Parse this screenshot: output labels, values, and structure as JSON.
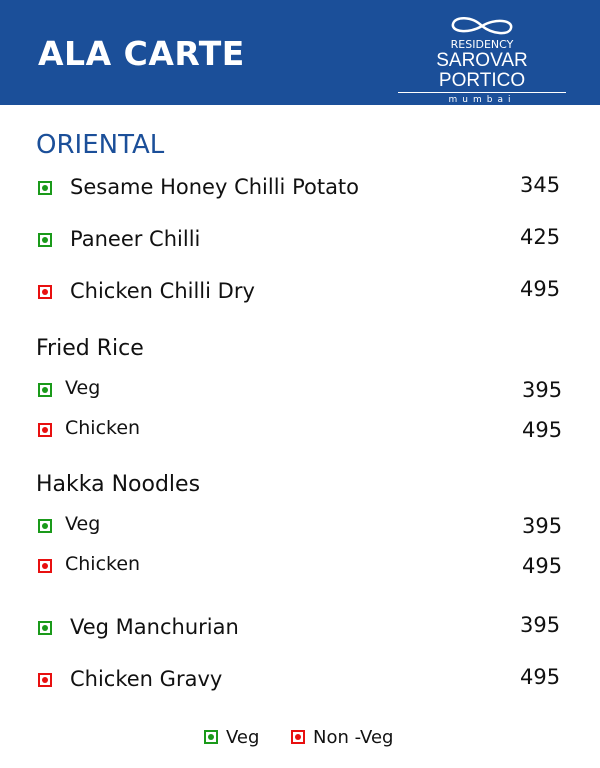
{
  "header": {
    "title": "ALA CARTE",
    "logo": {
      "line1": "RESIDENCY",
      "line2": "SAROVAR PORTICO",
      "line3": "mumbai"
    }
  },
  "colors": {
    "brand": "#1b4f99",
    "veg": "#1a9a1a",
    "non_veg": "#e81010"
  },
  "section": "ORIENTAL",
  "items_top": [
    {
      "type": "veg",
      "name": "Sesame Honey Chilli Potato",
      "price": "345"
    },
    {
      "type": "non-veg",
      "name": "Paneer Chilli",
      "price": "425"
    },
    {
      "type": "non-veg",
      "name": "Chicken Chilli Dry",
      "price": "495"
    }
  ],
  "fried_rice": {
    "title": "Fried Rice",
    "items": [
      {
        "type": "veg",
        "name": "Veg",
        "price": "395"
      },
      {
        "type": "non-veg",
        "name": "Chicken",
        "price": "495"
      }
    ]
  },
  "hakka": {
    "title": "Hakka Noodles",
    "items": [
      {
        "type": "veg",
        "name": "Veg",
        "price": "395"
      },
      {
        "type": "non-veg",
        "name": "Chicken",
        "price": "495"
      }
    ]
  },
  "items_bottom": [
    {
      "type": "veg",
      "name": "Veg Manchurian",
      "price": "395"
    },
    {
      "type": "non-veg",
      "name": "Chicken Gravy",
      "price": "495"
    }
  ],
  "legend": {
    "veg": "Veg",
    "non_veg": "Non -Veg"
  }
}
